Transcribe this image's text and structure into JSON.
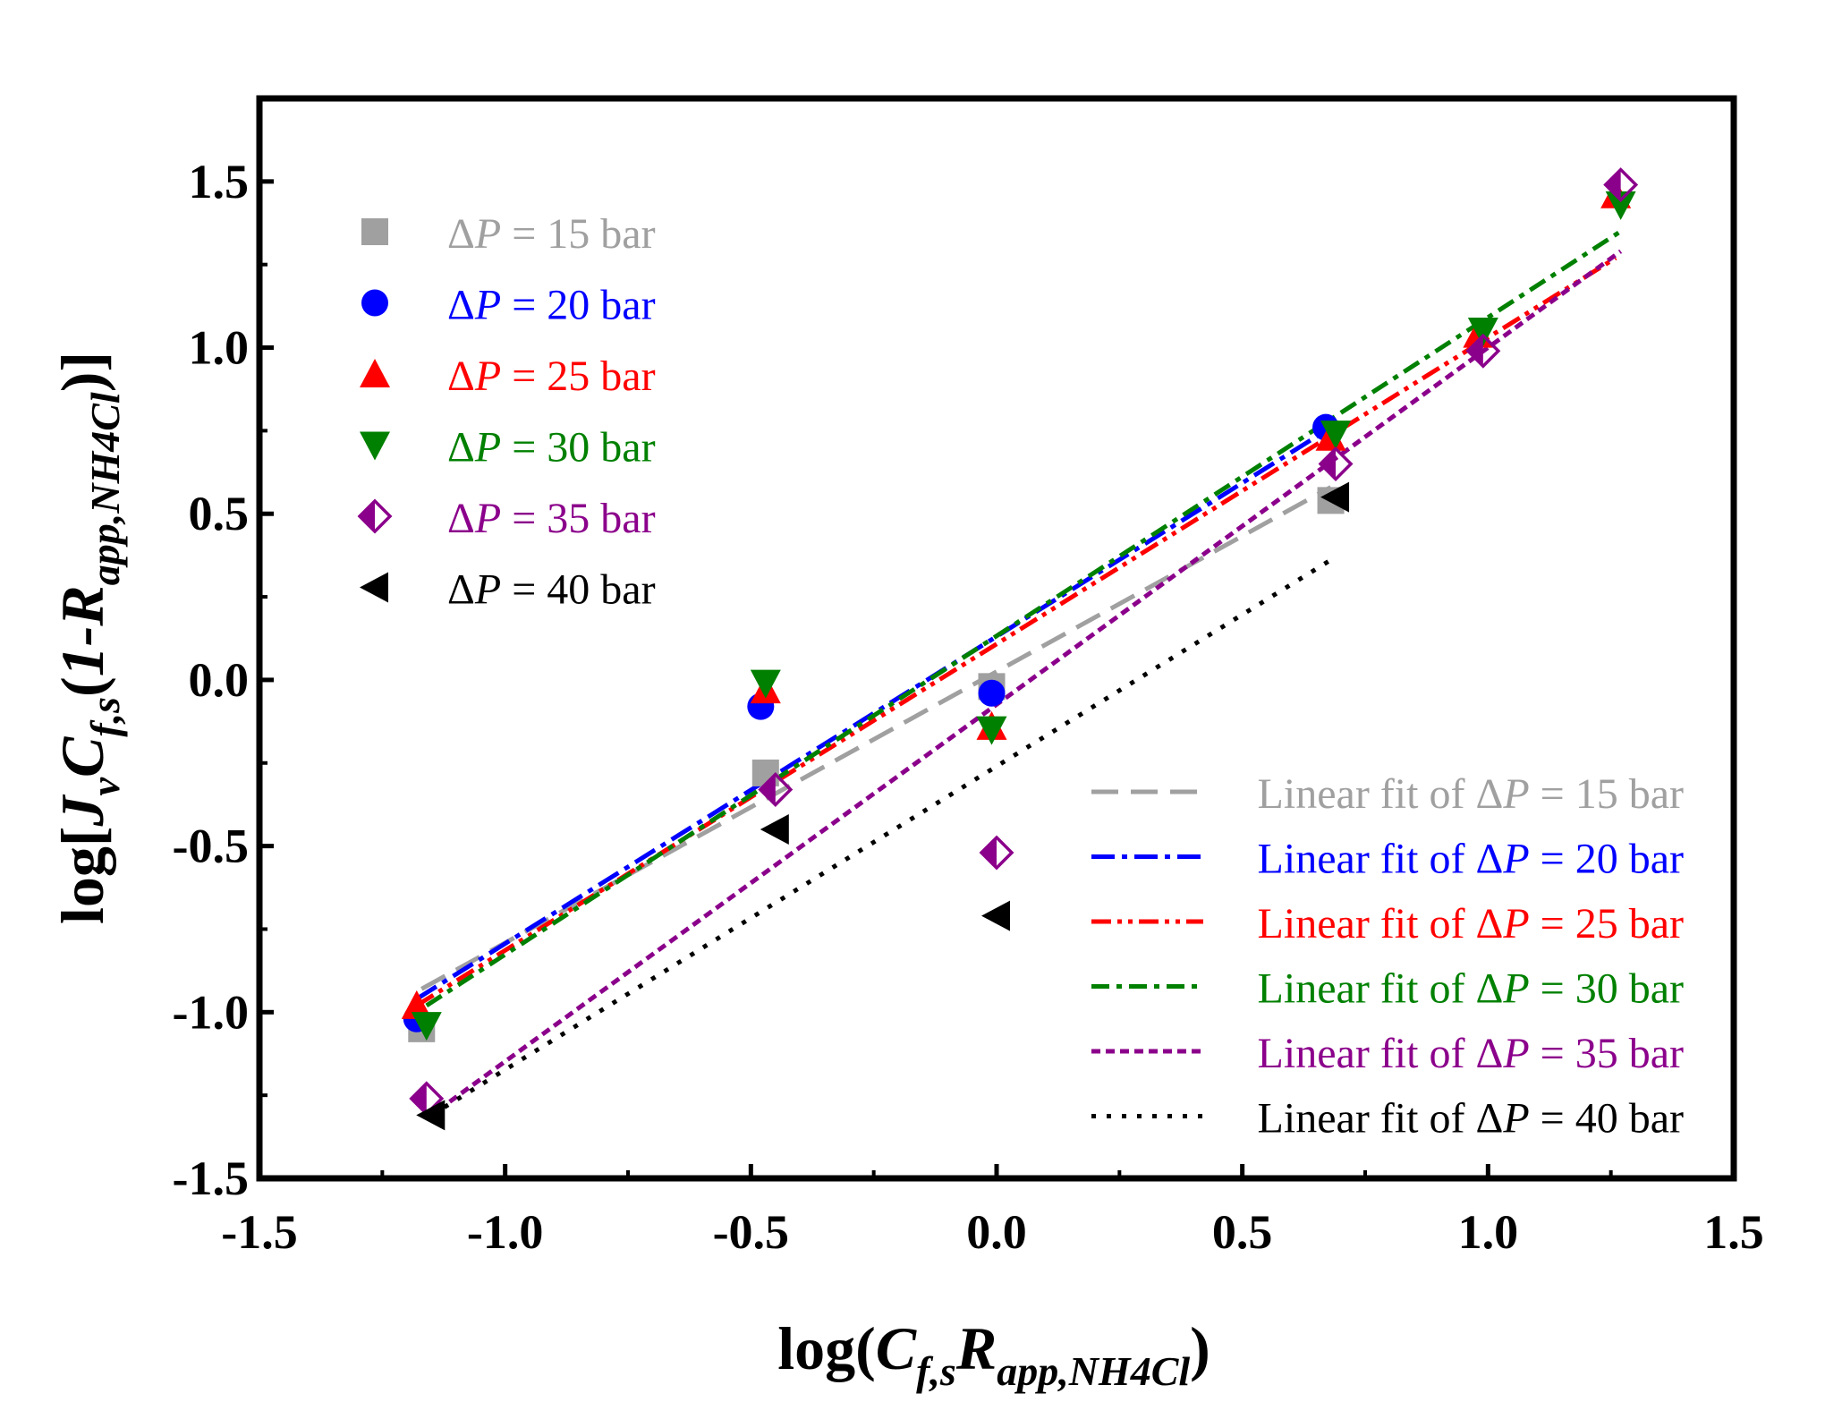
{
  "chart_data": {
    "type": "scatter",
    "xlabel": {
      "base": "log(",
      "C": "C",
      "C_sub": "f,s",
      "R": "R",
      "R_sub": "app,NH4Cl",
      "close": ")"
    },
    "ylabel": {
      "base": "log[",
      "J": "J",
      "J_sub": "v",
      "C": "C",
      "C_sub": "f,s",
      "open": "(",
      "one": "1-",
      "R": "R",
      "R_sub": "app,NH4Cl",
      "close": ")]"
    },
    "xlim": [
      -1.5,
      1.5
    ],
    "ylim": [
      -1.5,
      1.75
    ],
    "xticks": [
      {
        "v": -1.5,
        "label": "-1.5"
      },
      {
        "v": -1.0,
        "label": "-1.0"
      },
      {
        "v": -0.5,
        "label": "-0.5"
      },
      {
        "v": 0.0,
        "label": "0.0"
      },
      {
        "v": 0.5,
        "label": "0.5"
      },
      {
        "v": 1.0,
        "label": "1.0"
      },
      {
        "v": 1.5,
        "label": "1.5"
      }
    ],
    "yticks": [
      {
        "v": -1.5,
        "label": "-1.5"
      },
      {
        "v": -1.0,
        "label": "-1.0"
      },
      {
        "v": -0.5,
        "label": "-0.5"
      },
      {
        "v": 0.0,
        "label": "0.0"
      },
      {
        "v": 0.5,
        "label": "0.5"
      },
      {
        "v": 1.0,
        "label": "1.0"
      },
      {
        "v": 1.5,
        "label": "1.5"
      }
    ],
    "grid": false,
    "legend_placement": [
      "top-left",
      "bottom-right"
    ],
    "series": [
      {
        "name": "ΔP = 15 bar",
        "prefix": "Δ",
        "var": "P",
        "suffix": " = 15 bar",
        "color": "#a0a0a0",
        "marker": "square",
        "points": [
          [
            -1.17,
            -1.05
          ],
          [
            -0.47,
            -0.28
          ],
          [
            -0.01,
            -0.02
          ],
          [
            0.68,
            0.54
          ]
        ],
        "fit_name": "Linear fit of ΔP = 15 bar",
        "fit_prefix": "Linear fit of Δ",
        "fit_dash": "30,14",
        "fit_x": [
          -1.17,
          0.68
        ],
        "fit_y": [
          -0.93,
          0.58
        ]
      },
      {
        "name": "ΔP = 20 bar",
        "prefix": "Δ",
        "var": "P",
        "suffix": " = 20 bar",
        "color": "#0000ff",
        "marker": "circle",
        "points": [
          [
            -1.18,
            -1.02
          ],
          [
            -0.48,
            -0.08
          ],
          [
            -0.01,
            -0.04
          ],
          [
            0.67,
            0.76
          ]
        ],
        "fit_name": "Linear fit of ΔP = 20 bar",
        "fit_prefix": "Linear fit of Δ",
        "fit_dash": "26,8,6,8",
        "fit_x": [
          -1.18,
          0.67
        ],
        "fit_y": [
          -0.96,
          0.75
        ]
      },
      {
        "name": "ΔP = 25 bar",
        "prefix": "Δ",
        "var": "P",
        "suffix": " = 25 bar",
        "color": "#ff0000",
        "marker": "triangle-up",
        "points": [
          [
            -1.18,
            -0.98
          ],
          [
            -0.47,
            -0.03
          ],
          [
            -0.01,
            -0.14
          ],
          [
            0.68,
            0.73
          ],
          [
            0.98,
            1.04
          ],
          [
            1.26,
            1.46
          ]
        ],
        "fit_name": "Linear fit of ΔP = 25 bar",
        "fit_prefix": "Linear fit of Δ",
        "fit_dash": "22,7,5,7,5,7",
        "fit_x": [
          -1.18,
          1.26
        ],
        "fit_y": [
          -0.98,
          1.27
        ]
      },
      {
        "name": "ΔP = 30 bar",
        "prefix": "Δ",
        "var": "P",
        "suffix": " = 30 bar",
        "color": "#008000",
        "marker": "triangle-down",
        "points": [
          [
            -1.16,
            -1.04
          ],
          [
            -0.47,
            -0.01
          ],
          [
            -0.01,
            -0.15
          ],
          [
            0.69,
            0.74
          ],
          [
            0.99,
            1.05
          ],
          [
            1.27,
            1.43
          ]
        ],
        "fit_name": "Linear fit of ΔP = 30 bar",
        "fit_prefix": "Linear fit of Δ",
        "fit_dash": "20,8,6,8",
        "fit_x": [
          -1.16,
          1.27
        ],
        "fit_y": [
          -0.98,
          1.35
        ]
      },
      {
        "name": "ΔP = 35 bar",
        "prefix": "Δ",
        "var": "P",
        "suffix": " = 35 bar",
        "color": "#8b008b",
        "marker": "half-diamond",
        "points": [
          [
            -1.16,
            -1.26
          ],
          [
            -0.45,
            -0.33
          ],
          [
            0.0,
            -0.52
          ],
          [
            0.69,
            0.65
          ],
          [
            0.99,
            0.99
          ],
          [
            1.27,
            1.49
          ]
        ],
        "fit_name": "Linear fit of ΔP = 35 bar",
        "fit_prefix": "Linear fit of Δ",
        "fit_dash": "10,6",
        "fit_x": [
          -1.16,
          1.27
        ],
        "fit_y": [
          -1.32,
          1.29
        ]
      },
      {
        "name": "ΔP = 40 bar",
        "prefix": "Δ",
        "var": "P",
        "suffix": " = 40 bar",
        "color": "#000000",
        "marker": "triangle-left",
        "points": [
          [
            -1.15,
            -1.31
          ],
          [
            -0.45,
            -0.45
          ],
          [
            0.0,
            -0.71
          ],
          [
            0.69,
            0.55
          ]
        ],
        "fit_name": "Linear fit of ΔP = 40 bar",
        "fit_prefix": "Linear fit of Δ",
        "fit_dash": "5,12",
        "fit_x": [
          -1.15,
          0.69
        ],
        "fit_y": [
          -1.31,
          0.37
        ]
      }
    ]
  }
}
